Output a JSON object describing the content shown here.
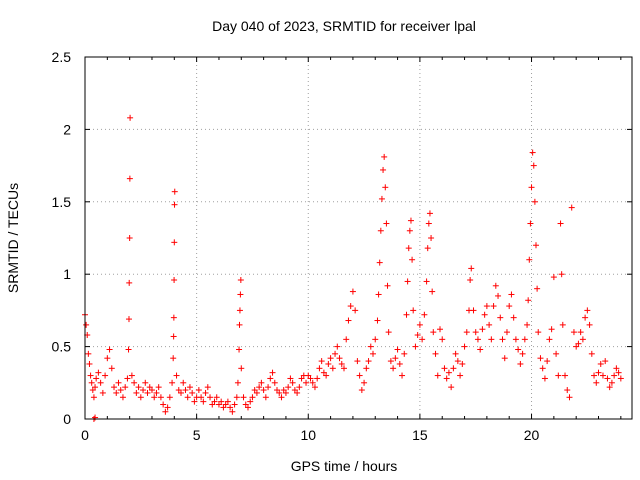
{
  "chart_data": {
    "type": "scatter",
    "title": "Day 040 of 2023, SRMTID for receiver lpal",
    "xlabel": "GPS time / hours",
    "ylabel": "SRMTID / TECUs",
    "xlim": [
      0,
      24.5
    ],
    "ylim": [
      0,
      2.5
    ],
    "xticks": [
      0,
      5,
      10,
      15,
      20
    ],
    "xtick_labels": [
      "0",
      "5",
      "10",
      "15",
      "20"
    ],
    "yticks": [
      0,
      0.5,
      1,
      1.5,
      2,
      2.5
    ],
    "ytick_labels": [
      "0",
      "0.5",
      "1",
      "1.5",
      "2",
      "2.5"
    ],
    "grid": true,
    "marker": "+",
    "color": "#ff0000",
    "series": [
      {
        "name": "SRMTID",
        "points": [
          [
            0.0,
            0.72
          ],
          [
            0.05,
            0.65
          ],
          [
            0.1,
            0.58
          ],
          [
            0.15,
            0.45
          ],
          [
            0.2,
            0.38
          ],
          [
            0.25,
            0.3
          ],
          [
            0.3,
            0.25
          ],
          [
            0.35,
            0.2
          ],
          [
            0.4,
            0.15
          ],
          [
            0.45,
            0.22
          ],
          [
            0.5,
            0.28
          ],
          [
            0.6,
            0.32
          ],
          [
            0.7,
            0.25
          ],
          [
            0.8,
            0.18
          ],
          [
            0.9,
            0.3
          ],
          [
            1.0,
            0.42
          ],
          [
            1.1,
            0.48
          ],
          [
            1.2,
            0.35
          ],
          [
            1.3,
            0.22
          ],
          [
            1.4,
            0.18
          ],
          [
            1.5,
            0.25
          ],
          [
            1.6,
            0.2
          ],
          [
            1.7,
            0.15
          ],
          [
            1.8,
            0.22
          ],
          [
            1.9,
            0.28
          ],
          [
            1.95,
            0.48
          ],
          [
            1.97,
            0.69
          ],
          [
            1.98,
            0.94
          ],
          [
            2.0,
            1.25
          ],
          [
            2.01,
            1.66
          ],
          [
            2.02,
            2.08
          ],
          [
            2.1,
            0.3
          ],
          [
            2.2,
            0.25
          ],
          [
            2.3,
            0.18
          ],
          [
            2.4,
            0.22
          ],
          [
            2.5,
            0.15
          ],
          [
            2.6,
            0.2
          ],
          [
            2.7,
            0.25
          ],
          [
            2.8,
            0.18
          ],
          [
            2.9,
            0.22
          ],
          [
            3.0,
            0.2
          ],
          [
            3.1,
            0.15
          ],
          [
            3.2,
            0.18
          ],
          [
            3.3,
            0.22
          ],
          [
            3.4,
            0.15
          ],
          [
            3.5,
            0.1
          ],
          [
            3.6,
            0.05
          ],
          [
            3.7,
            0.08
          ],
          [
            3.8,
            0.15
          ],
          [
            3.9,
            0.25
          ],
          [
            3.95,
            0.42
          ],
          [
            3.97,
            0.57
          ],
          [
            3.98,
            0.7
          ],
          [
            3.99,
            0.96
          ],
          [
            4.0,
            1.22
          ],
          [
            4.01,
            1.48
          ],
          [
            4.02,
            1.57
          ],
          [
            4.1,
            0.3
          ],
          [
            4.2,
            0.2
          ],
          [
            4.3,
            0.18
          ],
          [
            4.4,
            0.25
          ],
          [
            4.5,
            0.2
          ],
          [
            4.6,
            0.15
          ],
          [
            4.7,
            0.22
          ],
          [
            4.8,
            0.18
          ],
          [
            4.9,
            0.12
          ],
          [
            5.0,
            0.15
          ],
          [
            5.1,
            0.2
          ],
          [
            5.2,
            0.15
          ],
          [
            5.3,
            0.12
          ],
          [
            5.4,
            0.18
          ],
          [
            5.5,
            0.22
          ],
          [
            5.6,
            0.15
          ],
          [
            5.7,
            0.1
          ],
          [
            5.8,
            0.12
          ],
          [
            5.9,
            0.15
          ],
          [
            6.0,
            0.1
          ],
          [
            6.1,
            0.12
          ],
          [
            6.2,
            0.08
          ],
          [
            6.3,
            0.1
          ],
          [
            6.4,
            0.12
          ],
          [
            6.5,
            0.08
          ],
          [
            6.6,
            0.05
          ],
          [
            6.7,
            0.1
          ],
          [
            6.8,
            0.15
          ],
          [
            6.85,
            0.25
          ],
          [
            6.9,
            0.48
          ],
          [
            6.92,
            0.65
          ],
          [
            6.94,
            0.75
          ],
          [
            6.96,
            0.86
          ],
          [
            6.98,
            0.96
          ],
          [
            7.0,
            0.35
          ],
          [
            7.1,
            0.15
          ],
          [
            7.2,
            0.1
          ],
          [
            7.3,
            0.08
          ],
          [
            7.4,
            0.12
          ],
          [
            7.5,
            0.15
          ],
          [
            7.6,
            0.2
          ],
          [
            7.7,
            0.18
          ],
          [
            7.8,
            0.22
          ],
          [
            7.9,
            0.25
          ],
          [
            8.0,
            0.2
          ],
          [
            8.1,
            0.15
          ],
          [
            8.2,
            0.22
          ],
          [
            8.3,
            0.28
          ],
          [
            8.4,
            0.32
          ],
          [
            8.5,
            0.25
          ],
          [
            8.6,
            0.2
          ],
          [
            8.7,
            0.18
          ],
          [
            8.8,
            0.15
          ],
          [
            8.9,
            0.2
          ],
          [
            9.0,
            0.18
          ],
          [
            9.1,
            0.22
          ],
          [
            9.2,
            0.28
          ],
          [
            9.3,
            0.25
          ],
          [
            9.4,
            0.2
          ],
          [
            9.5,
            0.18
          ],
          [
            9.6,
            0.22
          ],
          [
            9.7,
            0.28
          ],
          [
            9.8,
            0.3
          ],
          [
            9.9,
            0.25
          ],
          [
            10.0,
            0.3
          ],
          [
            10.1,
            0.28
          ],
          [
            10.2,
            0.25
          ],
          [
            10.3,
            0.22
          ],
          [
            10.4,
            0.28
          ],
          [
            10.5,
            0.35
          ],
          [
            10.6,
            0.4
          ],
          [
            10.7,
            0.32
          ],
          [
            10.8,
            0.3
          ],
          [
            10.9,
            0.38
          ],
          [
            11.0,
            0.42
          ],
          [
            11.1,
            0.35
          ],
          [
            11.2,
            0.45
          ],
          [
            11.3,
            0.5
          ],
          [
            11.4,
            0.42
          ],
          [
            11.5,
            0.38
          ],
          [
            11.6,
            0.35
          ],
          [
            11.7,
            0.55
          ],
          [
            11.8,
            0.68
          ],
          [
            11.9,
            0.78
          ],
          [
            12.0,
            0.88
          ],
          [
            12.1,
            0.75
          ],
          [
            12.2,
            0.4
          ],
          [
            12.3,
            0.3
          ],
          [
            12.4,
            0.2
          ],
          [
            12.5,
            0.25
          ],
          [
            12.6,
            0.35
          ],
          [
            12.7,
            0.4
          ],
          [
            12.8,
            0.5
          ],
          [
            12.9,
            0.45
          ],
          [
            13.0,
            0.55
          ],
          [
            13.1,
            0.68
          ],
          [
            13.15,
            0.86
          ],
          [
            13.2,
            1.08
          ],
          [
            13.25,
            1.3
          ],
          [
            13.3,
            1.52
          ],
          [
            13.35,
            1.72
          ],
          [
            13.4,
            1.81
          ],
          [
            13.45,
            1.6
          ],
          [
            13.5,
            1.35
          ],
          [
            13.55,
            0.92
          ],
          [
            13.6,
            0.6
          ],
          [
            13.7,
            0.4
          ],
          [
            13.8,
            0.35
          ],
          [
            13.9,
            0.42
          ],
          [
            14.0,
            0.48
          ],
          [
            14.1,
            0.38
          ],
          [
            14.2,
            0.3
          ],
          [
            14.3,
            0.45
          ],
          [
            14.4,
            0.72
          ],
          [
            14.45,
            0.95
          ],
          [
            14.5,
            1.18
          ],
          [
            14.55,
            1.3
          ],
          [
            14.6,
            1.37
          ],
          [
            14.65,
            1.1
          ],
          [
            14.7,
            0.75
          ],
          [
            14.8,
            0.5
          ],
          [
            14.9,
            0.58
          ],
          [
            15.0,
            0.65
          ],
          [
            15.1,
            0.55
          ],
          [
            15.2,
            0.72
          ],
          [
            15.3,
            0.95
          ],
          [
            15.35,
            1.18
          ],
          [
            15.4,
            1.35
          ],
          [
            15.45,
            1.42
          ],
          [
            15.5,
            1.25
          ],
          [
            15.55,
            0.88
          ],
          [
            15.6,
            0.6
          ],
          [
            15.7,
            0.45
          ],
          [
            15.8,
            0.3
          ],
          [
            15.9,
            0.62
          ],
          [
            16.0,
            0.55
          ],
          [
            16.1,
            0.35
          ],
          [
            16.2,
            0.28
          ],
          [
            16.3,
            0.32
          ],
          [
            16.4,
            0.22
          ],
          [
            16.5,
            0.35
          ],
          [
            16.6,
            0.45
          ],
          [
            16.7,
            0.4
          ],
          [
            16.8,
            0.3
          ],
          [
            16.9,
            0.38
          ],
          [
            17.0,
            0.5
          ],
          [
            17.1,
            0.6
          ],
          [
            17.2,
            0.75
          ],
          [
            17.25,
            0.96
          ],
          [
            17.3,
            1.04
          ],
          [
            17.4,
            0.75
          ],
          [
            17.5,
            0.6
          ],
          [
            17.6,
            0.55
          ],
          [
            17.7,
            0.48
          ],
          [
            17.8,
            0.62
          ],
          [
            17.9,
            0.72
          ],
          [
            18.0,
            0.78
          ],
          [
            18.1,
            0.65
          ],
          [
            18.2,
            0.55
          ],
          [
            18.3,
            0.78
          ],
          [
            18.4,
            0.92
          ],
          [
            18.5,
            0.85
          ],
          [
            18.6,
            0.7
          ],
          [
            18.7,
            0.55
          ],
          [
            18.8,
            0.42
          ],
          [
            18.9,
            0.6
          ],
          [
            19.0,
            0.78
          ],
          [
            19.1,
            0.86
          ],
          [
            19.2,
            0.7
          ],
          [
            19.3,
            0.55
          ],
          [
            19.4,
            0.48
          ],
          [
            19.5,
            0.38
          ],
          [
            19.6,
            0.45
          ],
          [
            19.7,
            0.55
          ],
          [
            19.8,
            0.65
          ],
          [
            19.85,
            0.82
          ],
          [
            19.9,
            1.1
          ],
          [
            19.95,
            1.35
          ],
          [
            20.0,
            1.6
          ],
          [
            20.05,
            1.84
          ],
          [
            20.1,
            1.75
          ],
          [
            20.15,
            1.5
          ],
          [
            20.2,
            1.2
          ],
          [
            20.25,
            0.9
          ],
          [
            20.3,
            0.6
          ],
          [
            20.4,
            0.42
          ],
          [
            20.5,
            0.35
          ],
          [
            20.6,
            0.28
          ],
          [
            20.7,
            0.4
          ],
          [
            20.8,
            0.55
          ],
          [
            20.9,
            0.62
          ],
          [
            21.0,
            0.98
          ],
          [
            21.1,
            0.45
          ],
          [
            21.2,
            0.3
          ],
          [
            21.3,
            1.35
          ],
          [
            21.35,
            1.0
          ],
          [
            21.4,
            0.65
          ],
          [
            21.5,
            0.3
          ],
          [
            21.6,
            0.2
          ],
          [
            21.7,
            0.15
          ],
          [
            21.8,
            1.46
          ],
          [
            21.9,
            0.6
          ],
          [
            22.0,
            0.5
          ],
          [
            22.1,
            0.52
          ],
          [
            22.2,
            0.6
          ],
          [
            22.3,
            0.55
          ],
          [
            22.4,
            0.7
          ],
          [
            22.5,
            0.75
          ],
          [
            22.6,
            0.65
          ],
          [
            22.7,
            0.45
          ],
          [
            22.8,
            0.3
          ],
          [
            22.9,
            0.25
          ],
          [
            23.0,
            0.32
          ],
          [
            23.1,
            0.38
          ],
          [
            23.2,
            0.3
          ],
          [
            23.3,
            0.4
          ],
          [
            23.4,
            0.28
          ],
          [
            23.5,
            0.22
          ],
          [
            23.6,
            0.25
          ],
          [
            23.7,
            0.3
          ],
          [
            23.8,
            0.35
          ],
          [
            23.9,
            0.32
          ],
          [
            24.0,
            0.28
          ],
          [
            0.4,
            0.0
          ],
          [
            0.45,
            0.01
          ]
        ]
      }
    ]
  }
}
